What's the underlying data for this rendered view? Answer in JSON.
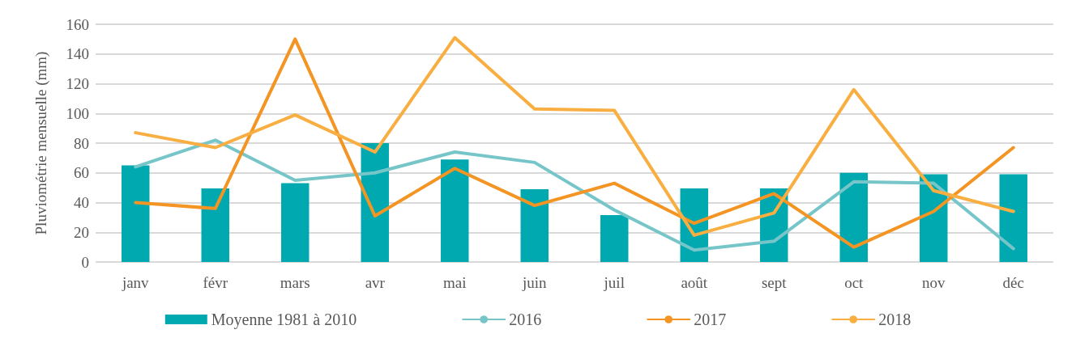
{
  "chart_data": {
    "type": "line",
    "ylabel": "Pluviométrie mensuelle (mm)",
    "categories": [
      "janv",
      "févr",
      "mars",
      "avr",
      "mai",
      "juin",
      "juil",
      "août",
      "sept",
      "oct",
      "nov",
      "déc"
    ],
    "series": [
      {
        "name": "Moyenne 1981 à 2010",
        "type": "bar",
        "color": "#00a9b0",
        "values": [
          65,
          49.5,
          53,
          80,
          69,
          49,
          31.5,
          49.5,
          49.5,
          60,
          59,
          59
        ]
      },
      {
        "name": "2016",
        "color": "#76c5c9",
        "values": [
          64,
          82,
          55,
          60,
          74,
          67,
          35,
          8,
          14,
          54,
          53,
          9
        ]
      },
      {
        "name": "2017",
        "color": "#f39423",
        "values": [
          40,
          36,
          150,
          31,
          63,
          38,
          53,
          26,
          46,
          10,
          34,
          77
        ]
      },
      {
        "name": "2018",
        "color": "#f8ae40",
        "values": [
          87,
          77,
          99,
          74,
          151,
          103,
          102,
          18,
          33,
          116,
          48,
          34
        ]
      }
    ],
    "ylim": [
      0,
      160
    ],
    "yticks": [
      0,
      20,
      40,
      60,
      80,
      100,
      120,
      140,
      160
    ],
    "grid": "y",
    "legend": "bottom",
    "marker": "none"
  }
}
